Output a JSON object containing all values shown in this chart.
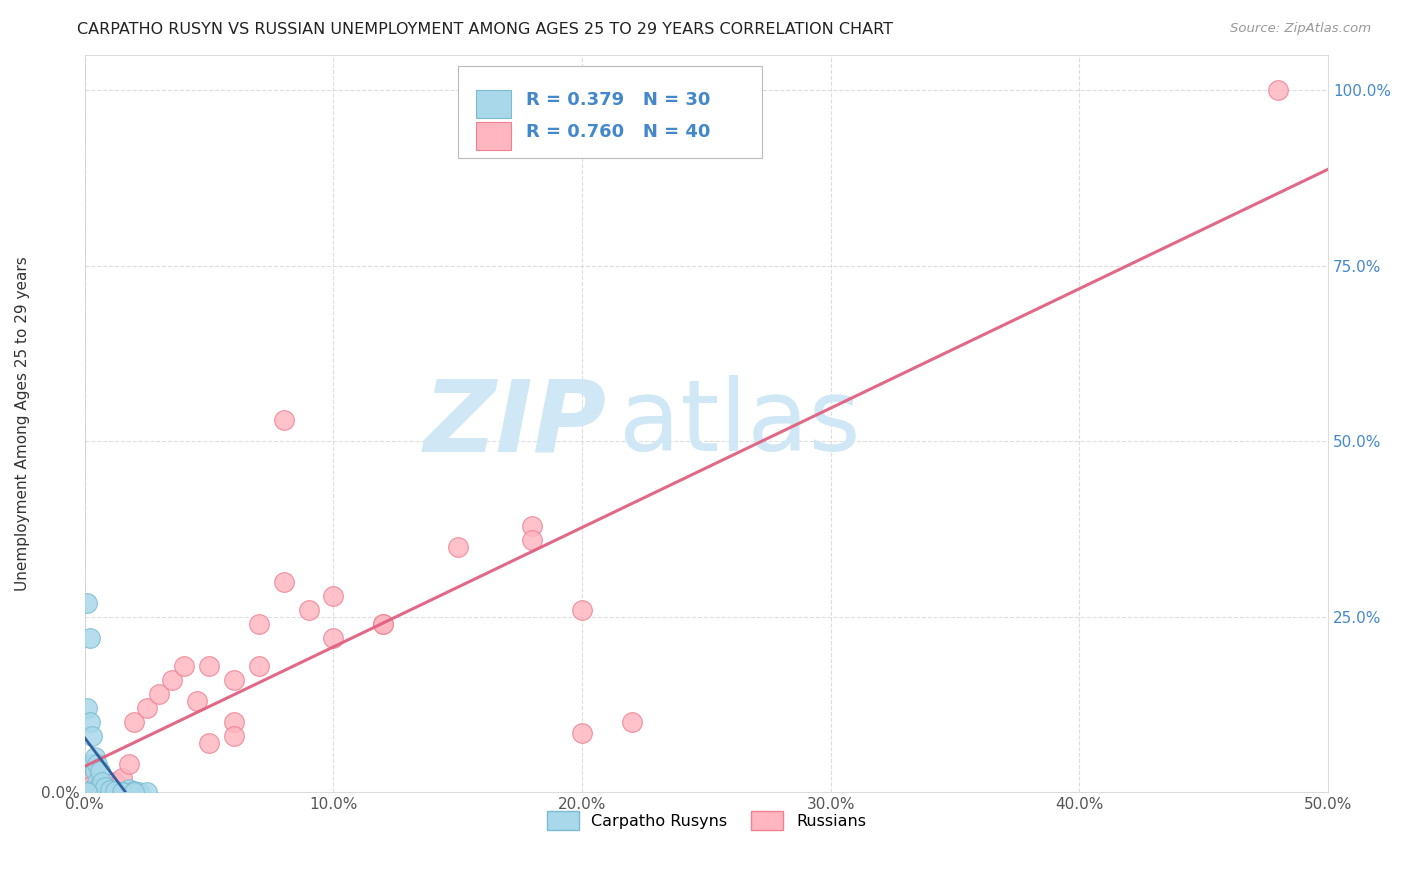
{
  "title": "CARPATHO RUSYN VS RUSSIAN UNEMPLOYMENT AMONG AGES 25 TO 29 YEARS CORRELATION CHART",
  "source": "Source: ZipAtlas.com",
  "ylabel": "Unemployment Among Ages 25 to 29 years",
  "xlim": [
    0.0,
    0.5
  ],
  "ylim": [
    0.0,
    1.05
  ],
  "xticks": [
    0.0,
    0.1,
    0.2,
    0.3,
    0.4,
    0.5
  ],
  "yticks": [
    0.0,
    0.25,
    0.5,
    0.75,
    1.0
  ],
  "xtick_labels": [
    "0.0%",
    "10.0%",
    "20.0%",
    "30.0%",
    "40.0%",
    "50.0%"
  ],
  "ytick_labels_left": [
    "0.0%",
    "",
    "",
    "",
    ""
  ],
  "ytick_labels_right": [
    "",
    "25.0%",
    "50.0%",
    "75.0%",
    "100.0%"
  ],
  "legend_label1": "Carpatho Rusyns",
  "legend_label2": "Russians",
  "legend_R1": "R = 0.379",
  "legend_N1": "N = 30",
  "legend_R2": "R = 0.760",
  "legend_N2": "N = 40",
  "carpatho_color": "#a8d8ea",
  "russian_color": "#ffb6c1",
  "carpatho_edge": "#7abcd0",
  "russian_edge": "#f08090",
  "trend_carpatho_color": "#a0b8d0",
  "trend_russian_color": "#e06080",
  "trend_carpatho_solid_color": "#3060a0",
  "watermark_zip": "ZIP",
  "watermark_atlas": "atlas",
  "watermark_color": "#d0e8f5",
  "background_color": "#ffffff",
  "grid_color": "#dddddd",
  "marker_size": 200,
  "right_tick_color": "#4488cc",
  "carpatho_x": [
    0.001,
    0.002,
    0.003,
    0.004,
    0.005,
    0.006,
    0.007,
    0.008,
    0.01,
    0.012,
    0.014,
    0.016,
    0.018,
    0.02,
    0.022,
    0.025,
    0.001,
    0.002,
    0.003,
    0.004,
    0.005,
    0.006,
    0.007,
    0.008,
    0.01,
    0.012,
    0.015,
    0.02,
    0.001,
    0.001
  ],
  "carpatho_y": [
    0.27,
    0.22,
    0.04,
    0.03,
    0.015,
    0.01,
    0.008,
    0.005,
    0.003,
    0.002,
    0.001,
    0.001,
    0.005,
    0.002,
    0.001,
    0.001,
    0.12,
    0.1,
    0.08,
    0.05,
    0.04,
    0.03,
    0.015,
    0.008,
    0.003,
    0.002,
    0.001,
    0.001,
    0.0,
    0.0
  ],
  "russian_x": [
    0.001,
    0.002,
    0.003,
    0.004,
    0.005,
    0.006,
    0.007,
    0.008,
    0.009,
    0.01,
    0.012,
    0.015,
    0.018,
    0.02,
    0.025,
    0.03,
    0.035,
    0.04,
    0.045,
    0.05,
    0.06,
    0.07,
    0.08,
    0.09,
    0.1,
    0.12,
    0.15,
    0.18,
    0.2,
    0.22,
    0.05,
    0.06,
    0.07,
    0.08,
    0.18,
    0.2,
    0.48,
    0.06,
    0.1,
    0.12
  ],
  "russian_y": [
    0.02,
    0.015,
    0.01,
    0.008,
    0.005,
    0.004,
    0.003,
    0.01,
    0.006,
    0.008,
    0.015,
    0.02,
    0.04,
    0.1,
    0.12,
    0.14,
    0.16,
    0.18,
    0.13,
    0.07,
    0.1,
    0.24,
    0.3,
    0.26,
    0.22,
    0.24,
    0.35,
    0.38,
    0.085,
    0.1,
    0.18,
    0.16,
    0.18,
    0.53,
    0.36,
    0.26,
    1.0,
    0.08,
    0.28,
    0.24
  ]
}
